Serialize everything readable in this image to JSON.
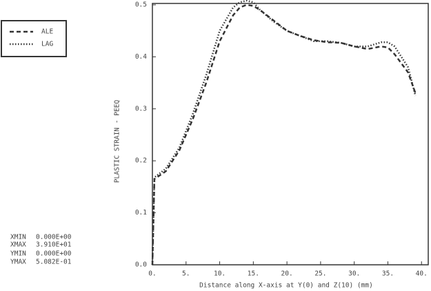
{
  "chart_data": {
    "type": "line",
    "x_label": "Distance along X-axis at Y(0) and Z(10) (mm)",
    "y_label": "PLASTIC STRAIN - PEEQ",
    "x": [
      0,
      0.3,
      2,
      4,
      6,
      8,
      10,
      12,
      13,
      14,
      15,
      16,
      18,
      20,
      22,
      24,
      26,
      28,
      30,
      32,
      34,
      35,
      36,
      38,
      39.1
    ],
    "series": [
      {
        "name": "ALE",
        "color": "#333333",
        "dash": "6,4",
        "values": [
          0,
          0.165,
          0.18,
          0.22,
          0.28,
          0.35,
          0.43,
          0.48,
          0.495,
          0.5,
          0.498,
          0.49,
          0.47,
          0.45,
          0.44,
          0.432,
          0.428,
          0.427,
          0.42,
          0.415,
          0.42,
          0.418,
          0.405,
          0.37,
          0.33
        ]
      },
      {
        "name": "LAG",
        "color": "#333333",
        "dash": "1.5,2.5",
        "values": [
          0,
          0.168,
          0.185,
          0.225,
          0.29,
          0.365,
          0.45,
          0.495,
          0.505,
          0.508,
          0.505,
          0.49,
          0.468,
          0.45,
          0.44,
          0.43,
          0.43,
          0.427,
          0.42,
          0.42,
          0.428,
          0.428,
          0.42,
          0.38,
          0.325
        ]
      }
    ],
    "xlim": [
      0,
      41
    ],
    "ylim": [
      0,
      0.5
    ],
    "xticks": [
      {
        "value": 0,
        "label": "0."
      },
      {
        "value": 5,
        "label": "5."
      },
      {
        "value": 10,
        "label": "10."
      },
      {
        "value": 15,
        "label": "15."
      },
      {
        "value": 20,
        "label": "20."
      },
      {
        "value": 25,
        "label": "25."
      },
      {
        "value": 30,
        "label": "30."
      },
      {
        "value": 35,
        "label": "35."
      },
      {
        "value": 40,
        "label": "40."
      }
    ],
    "yticks": [
      {
        "value": 0,
        "label": "0.0"
      },
      {
        "value": 0.1,
        "label": "0.1"
      },
      {
        "value": 0.2,
        "label": "0.2"
      },
      {
        "value": 0.3,
        "label": "0.3"
      },
      {
        "value": 0.4,
        "label": "0.4"
      },
      {
        "value": 0.5,
        "label": "0.5"
      }
    ],
    "legend": "outside-left",
    "annotations": [
      [
        "XMIN",
        "0.000E+00"
      ],
      [
        "XMAX",
        "3.910E+01"
      ],
      [
        "YMIN",
        "0.000E+00"
      ],
      [
        "YMAX",
        "5.082E-01"
      ]
    ]
  }
}
